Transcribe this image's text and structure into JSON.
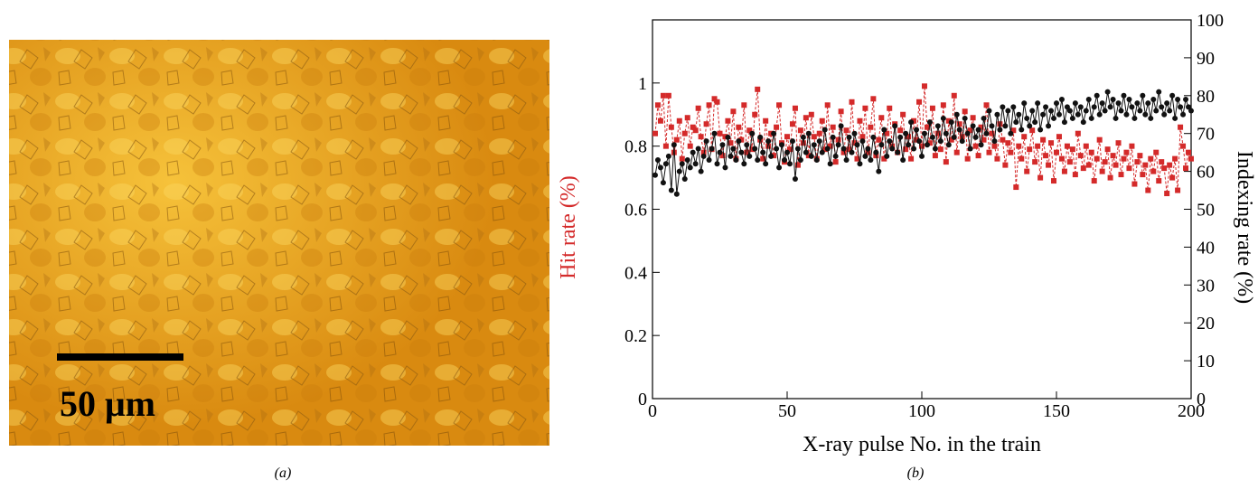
{
  "image_panel": {
    "scale_bar_label": "50 μm",
    "caption": "(a)"
  },
  "caption": "(b)",
  "chart_data": {
    "type": "scatter",
    "xlabel": "X-ray pulse No. in the train",
    "ylabel": "Hit rate (%)",
    "y2label": "Indexing rate (%)",
    "xlim": [
      0,
      200
    ],
    "xticks": [
      0,
      50,
      100,
      150,
      200
    ],
    "ylim": [
      0,
      1.2
    ],
    "yticks": [
      0,
      0.2,
      0.4,
      0.6,
      0.8,
      1
    ],
    "y2lim": [
      0,
      100
    ],
    "y2ticks": [
      0,
      10,
      20,
      30,
      40,
      50,
      60,
      70,
      80,
      90,
      100
    ],
    "x": [
      1,
      2,
      3,
      4,
      5,
      6,
      7,
      8,
      9,
      10,
      11,
      12,
      13,
      14,
      15,
      16,
      17,
      18,
      19,
      20,
      21,
      22,
      23,
      24,
      25,
      26,
      27,
      28,
      29,
      30,
      31,
      32,
      33,
      34,
      35,
      36,
      37,
      38,
      39,
      40,
      41,
      42,
      43,
      44,
      45,
      46,
      47,
      48,
      49,
      50,
      51,
      52,
      53,
      54,
      55,
      56,
      57,
      58,
      59,
      60,
      61,
      62,
      63,
      64,
      65,
      66,
      67,
      68,
      69,
      70,
      71,
      72,
      73,
      74,
      75,
      76,
      77,
      78,
      79,
      80,
      81,
      82,
      83,
      84,
      85,
      86,
      87,
      88,
      89,
      90,
      91,
      92,
      93,
      94,
      95,
      96,
      97,
      98,
      99,
      100,
      101,
      102,
      103,
      104,
      105,
      106,
      107,
      108,
      109,
      110,
      111,
      112,
      113,
      114,
      115,
      116,
      117,
      118,
      119,
      120,
      121,
      122,
      123,
      124,
      125,
      126,
      127,
      128,
      129,
      130,
      131,
      132,
      133,
      134,
      135,
      136,
      137,
      138,
      139,
      140,
      141,
      142,
      143,
      144,
      145,
      146,
      147,
      148,
      149,
      150,
      151,
      152,
      153,
      154,
      155,
      156,
      157,
      158,
      159,
      160,
      161,
      162,
      163,
      164,
      165,
      166,
      167,
      168,
      169,
      170,
      171,
      172,
      173,
      174,
      175,
      176,
      177,
      178,
      179,
      180,
      181,
      182,
      183,
      184,
      185,
      186,
      187,
      188,
      189,
      190,
      191,
      192,
      193,
      194,
      195,
      196,
      197,
      198,
      199,
      200
    ],
    "series": [
      {
        "name": "Hit rate (%)",
        "color": "#d42a2a",
        "axis": "y",
        "values": [
          0.84,
          0.93,
          0.88,
          0.96,
          0.8,
          0.96,
          0.86,
          0.78,
          0.82,
          0.88,
          0.76,
          0.84,
          0.89,
          0.8,
          0.86,
          0.85,
          0.92,
          0.83,
          0.78,
          0.87,
          0.93,
          0.79,
          0.95,
          0.94,
          0.84,
          0.77,
          0.83,
          0.88,
          0.81,
          0.91,
          0.76,
          0.86,
          0.82,
          0.93,
          0.78,
          0.85,
          0.79,
          0.9,
          0.98,
          0.82,
          0.76,
          0.88,
          0.8,
          0.84,
          0.77,
          0.86,
          0.93,
          0.81,
          0.75,
          0.83,
          0.79,
          0.87,
          0.92,
          0.74,
          0.85,
          0.81,
          0.89,
          0.77,
          0.9,
          0.83,
          0.76,
          0.84,
          0.88,
          0.79,
          0.93,
          0.8,
          0.86,
          0.75,
          0.82,
          0.91,
          0.78,
          0.85,
          0.79,
          0.94,
          0.81,
          0.76,
          0.88,
          0.83,
          0.92,
          0.78,
          0.86,
          0.95,
          0.77,
          0.82,
          0.89,
          0.76,
          0.84,
          0.92,
          0.8,
          0.87,
          0.78,
          0.85,
          0.9,
          0.79,
          0.83,
          0.76,
          0.88,
          0.82,
          0.94,
          0.8,
          0.99,
          0.86,
          0.81,
          0.92,
          0.77,
          0.84,
          0.79,
          0.93,
          0.75,
          0.88,
          0.82,
          0.96,
          0.78,
          0.87,
          0.83,
          0.91,
          0.76,
          0.85,
          0.89,
          0.8,
          0.77,
          0.86,
          0.82,
          0.93,
          0.78,
          0.84,
          0.8,
          0.76,
          0.87,
          0.82,
          0.74,
          0.81,
          0.78,
          0.85,
          0.67,
          0.8,
          0.76,
          0.83,
          0.72,
          0.79,
          0.85,
          0.75,
          0.8,
          0.7,
          0.82,
          0.77,
          0.74,
          0.81,
          0.69,
          0.78,
          0.83,
          0.76,
          0.72,
          0.8,
          0.75,
          0.79,
          0.71,
          0.84,
          0.77,
          0.73,
          0.8,
          0.74,
          0.78,
          0.69,
          0.76,
          0.82,
          0.72,
          0.75,
          0.79,
          0.7,
          0.77,
          0.74,
          0.81,
          0.71,
          0.76,
          0.78,
          0.73,
          0.8,
          0.68,
          0.75,
          0.77,
          0.71,
          0.74,
          0.66,
          0.76,
          0.72,
          0.78,
          0.69,
          0.75,
          0.73,
          0.65,
          0.74,
          0.7,
          0.76,
          0.66,
          0.86,
          0.8,
          0.73,
          0.78,
          0.76
        ]
      },
      {
        "name": "Indexing rate (%)",
        "color": "#111111",
        "axis": "y2",
        "values": [
          59,
          63,
          61,
          57,
          62,
          64,
          55,
          67,
          54,
          60,
          62,
          58,
          63,
          61,
          65,
          62,
          66,
          60,
          64,
          68,
          63,
          66,
          70,
          62,
          65,
          67,
          61,
          69,
          64,
          66,
          63,
          68,
          65,
          62,
          67,
          64,
          70,
          66,
          63,
          69,
          65,
          62,
          68,
          64,
          70,
          66,
          61,
          67,
          63,
          65,
          62,
          68,
          58,
          66,
          63,
          69,
          65,
          70,
          64,
          67,
          63,
          68,
          65,
          71,
          66,
          62,
          69,
          64,
          67,
          72,
          66,
          63,
          69,
          65,
          70,
          67,
          62,
          68,
          64,
          66,
          63,
          69,
          65,
          60,
          67,
          71,
          64,
          68,
          66,
          72,
          65,
          69,
          63,
          70,
          67,
          73,
          66,
          71,
          68,
          64,
          70,
          67,
          73,
          69,
          66,
          72,
          68,
          74,
          70,
          67,
          73,
          69,
          75,
          71,
          68,
          74,
          70,
          66,
          72,
          69,
          71,
          67,
          74,
          70,
          76,
          72,
          68,
          75,
          71,
          77,
          72,
          76,
          70,
          77,
          73,
          75,
          71,
          78,
          74,
          72,
          76,
          73,
          78,
          71,
          75,
          77,
          72,
          76,
          74,
          78,
          75,
          79,
          73,
          77,
          76,
          74,
          78,
          75,
          77,
          73,
          76,
          79,
          74,
          77,
          80,
          75,
          78,
          76,
          81,
          77,
          79,
          74,
          78,
          76,
          80,
          75,
          79,
          77,
          74,
          78,
          76,
          80,
          75,
          78,
          74,
          79,
          76,
          81,
          77,
          75,
          78,
          76,
          80,
          74,
          79,
          77,
          75,
          79,
          77,
          76
        ]
      }
    ]
  }
}
